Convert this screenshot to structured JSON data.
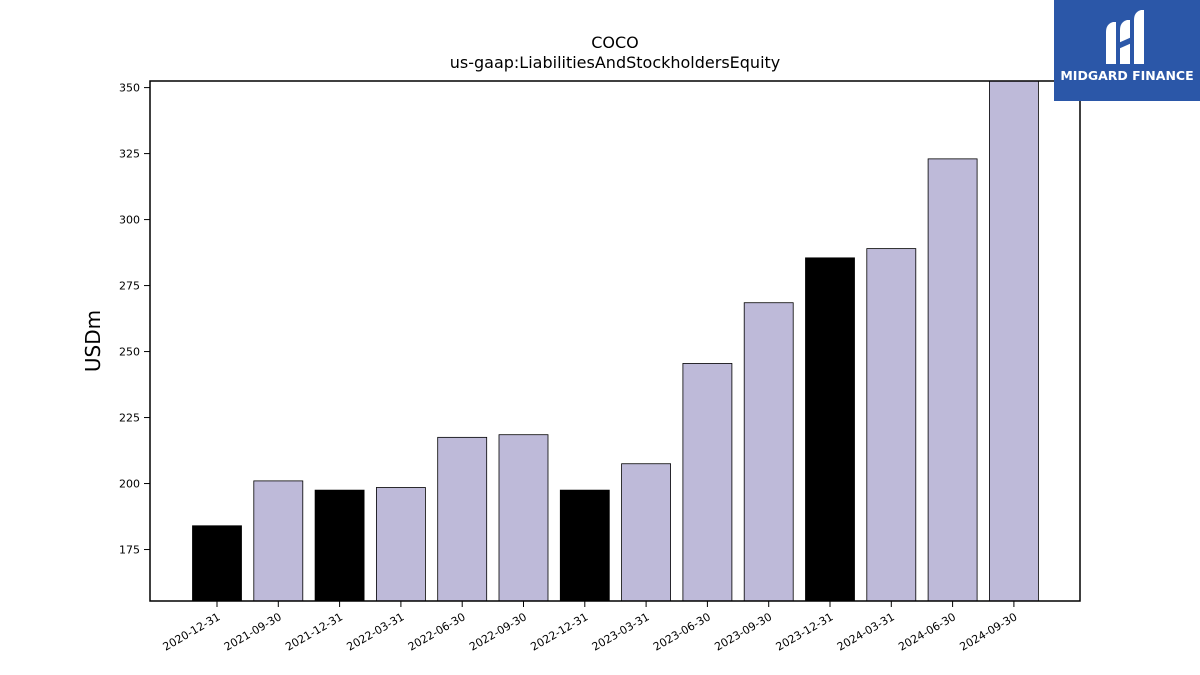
{
  "logo": {
    "text": "MIDGARD FINANCE",
    "bg_color": "#2b57a8"
  },
  "chart_data": {
    "type": "bar",
    "title": "COCO",
    "subtitle": "us-gaap:LiabilitiesAndStockholdersEquity",
    "xlabel": "",
    "ylabel": "USDm",
    "ylim": [
      155.5,
      352.5
    ],
    "yticks": [
      175,
      200,
      225,
      250,
      275,
      300,
      325,
      350
    ],
    "grid": false,
    "categories": [
      "2020-12-31",
      "2021-09-30",
      "2021-12-31",
      "2022-03-31",
      "2022-06-30",
      "2022-09-30",
      "2022-12-31",
      "2023-03-31",
      "2023-06-30",
      "2023-09-30",
      "2023-12-31",
      "2024-03-31",
      "2024-06-30",
      "2024-09-30"
    ],
    "values": [
      184.0,
      201.0,
      197.5,
      198.5,
      217.5,
      218.5,
      197.5,
      207.5,
      245.5,
      268.5,
      285.5,
      289.0,
      323.0,
      353.0
    ],
    "bar_colors": [
      "#000000",
      "#bebad9",
      "#000000",
      "#bebad9",
      "#bebad9",
      "#bebad9",
      "#000000",
      "#bebad9",
      "#bebad9",
      "#bebad9",
      "#000000",
      "#bebad9",
      "#bebad9",
      "#bebad9"
    ]
  }
}
